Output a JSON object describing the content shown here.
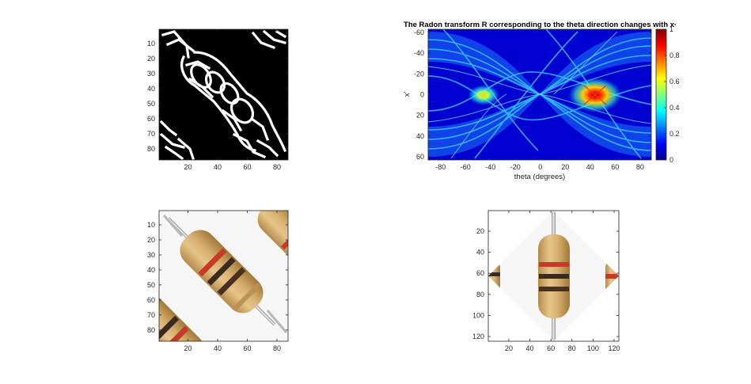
{
  "chart_data": [
    {
      "type": "heatmap",
      "panel": "edge-image",
      "description_colors": {
        "background": "#000000",
        "edges": "#ffffff"
      },
      "xticks": [
        "20",
        "40",
        "60",
        "80"
      ],
      "yticks": [
        "10",
        "20",
        "30",
        "40",
        "50",
        "60",
        "70",
        "80"
      ],
      "xlim": [
        0.5,
        87.5
      ],
      "ylim": [
        0.5,
        87.5
      ],
      "y_direction": "reverse"
    },
    {
      "type": "heatmap",
      "panel": "radon-transform",
      "title": "The Radon transform R corresponding to the theta direction changes with x",
      "title_suffix": "'",
      "xlabel": "theta (degrees)",
      "ylabel": "x'",
      "xticks": [
        "-80",
        "-60",
        "-40",
        "-20",
        "0",
        "20",
        "40",
        "60",
        "80"
      ],
      "yticks": [
        "-60",
        "-40",
        "-20",
        "0",
        "20",
        "40",
        "60"
      ],
      "xlim": [
        -90,
        89
      ],
      "ylim": [
        -63,
        63
      ],
      "y_direction": "reverse",
      "colormap": "jet",
      "colorbar_ticks": [
        "0",
        "0.2",
        "0.4",
        "0.6",
        "0.8",
        "1"
      ],
      "colorbar_range": [
        0,
        1
      ],
      "peaks": [
        {
          "theta": 45,
          "x": 0,
          "value": 1.0
        },
        {
          "theta": -45,
          "x": 0,
          "value": 0.6
        }
      ]
    },
    {
      "type": "heatmap",
      "panel": "original-image",
      "xticks": [
        "20",
        "40",
        "60",
        "80"
      ],
      "yticks": [
        "10",
        "20",
        "30",
        "40",
        "50",
        "60",
        "70",
        "80"
      ],
      "xlim": [
        0.5,
        87.5
      ],
      "ylim": [
        0.5,
        87.5
      ],
      "y_direction": "reverse"
    },
    {
      "type": "heatmap",
      "panel": "rotated-image",
      "xticks": [
        "20",
        "40",
        "60",
        "80",
        "100",
        "120"
      ],
      "yticks": [
        "20",
        "40",
        "60",
        "80",
        "100",
        "120"
      ],
      "xlim": [
        0.5,
        124.5
      ],
      "ylim": [
        0.5,
        124.5
      ],
      "y_direction": "reverse"
    }
  ]
}
